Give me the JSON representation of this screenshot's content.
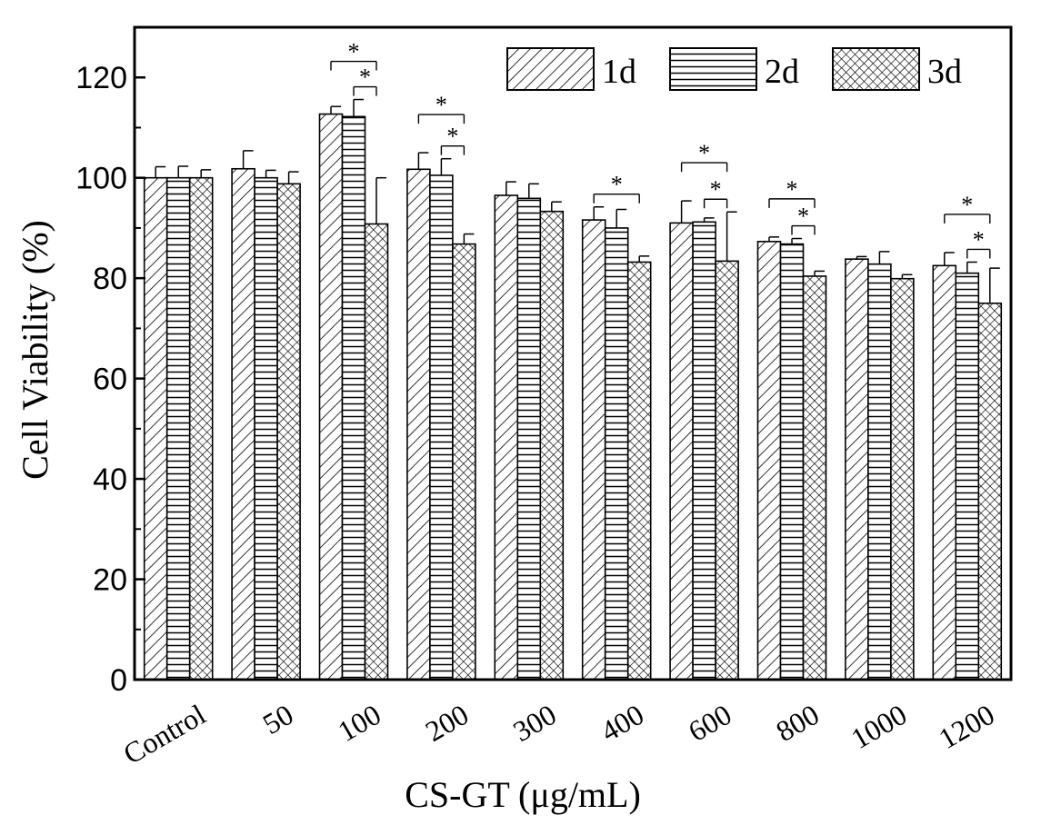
{
  "chart_data": {
    "type": "bar",
    "title": "",
    "xlabel": "CS-GT (μg/mL)",
    "ylabel": "Cell Viability (%)",
    "ylim": [
      0,
      130
    ],
    "yticks": [
      0,
      20,
      40,
      60,
      80,
      100,
      120
    ],
    "categories": [
      "Control",
      "50",
      "100",
      "200",
      "300",
      "400",
      "600",
      "800",
      "1000",
      "1200"
    ],
    "series": [
      {
        "name": "1d",
        "pattern": "diagonal",
        "values": [
          100.0,
          101.8,
          112.7,
          101.7,
          96.5,
          91.6,
          91.0,
          87.3,
          83.8,
          82.5
        ],
        "errors": [
          2.2,
          3.6,
          1.5,
          3.3,
          2.7,
          2.6,
          4.4,
          0.9,
          0.5,
          2.6
        ]
      },
      {
        "name": "2d",
        "pattern": "horizontal",
        "values": [
          100.0,
          100.0,
          112.2,
          100.5,
          95.9,
          90.0,
          91.2,
          86.8,
          82.8,
          81.0
        ],
        "errors": [
          2.3,
          1.5,
          3.4,
          3.3,
          2.9,
          3.7,
          0.8,
          1.1,
          2.5,
          2.2
        ]
      },
      {
        "name": "3d",
        "pattern": "crosshatch",
        "values": [
          100.0,
          98.8,
          90.8,
          86.8,
          93.3,
          83.2,
          83.4,
          80.4,
          79.9,
          75.0
        ],
        "errors": [
          1.6,
          2.4,
          9.2,
          2.0,
          1.9,
          1.2,
          9.8,
          1.0,
          0.8,
          7.0
        ]
      }
    ],
    "significance": [
      {
        "category": "100",
        "from": 0,
        "to": 2,
        "level": 1,
        "label": "*"
      },
      {
        "category": "100",
        "from": 1,
        "to": 2,
        "level": 0,
        "label": "*"
      },
      {
        "category": "200",
        "from": 0,
        "to": 2,
        "level": 1,
        "label": "*"
      },
      {
        "category": "200",
        "from": 1,
        "to": 2,
        "level": 0,
        "label": "*"
      },
      {
        "category": "400",
        "from": 0,
        "to": 2,
        "level": 0,
        "label": "*"
      },
      {
        "category": "600",
        "from": 0,
        "to": 2,
        "level": 1,
        "label": "*"
      },
      {
        "category": "600",
        "from": 1,
        "to": 2,
        "level": 0,
        "label": "*"
      },
      {
        "category": "800",
        "from": 0,
        "to": 2,
        "level": 1,
        "label": "*"
      },
      {
        "category": "800",
        "from": 1,
        "to": 2,
        "level": 0,
        "label": "*"
      },
      {
        "category": "1200",
        "from": 0,
        "to": 2,
        "level": 1,
        "label": "*"
      },
      {
        "category": "1200",
        "from": 1,
        "to": 2,
        "level": 0,
        "label": "*"
      }
    ],
    "legend": {
      "position": "top-right",
      "entries": [
        "1d",
        "2d",
        "3d"
      ]
    },
    "grid": false
  }
}
